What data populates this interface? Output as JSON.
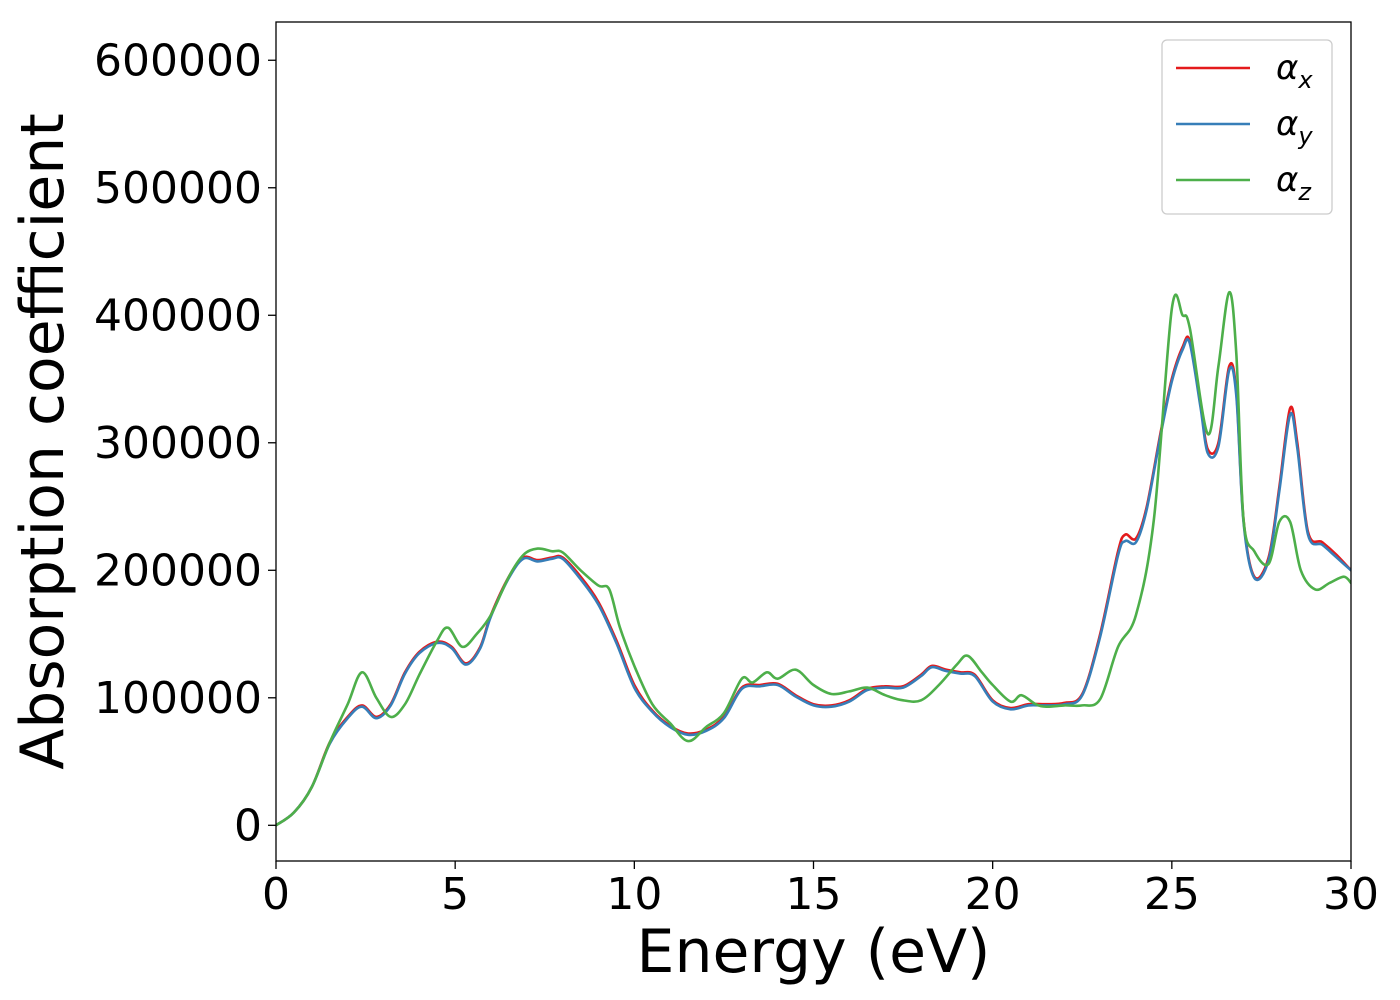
{
  "chart_data": {
    "type": "line",
    "title": "",
    "xlabel": "Energy (eV)",
    "ylabel": "Absorption coefficient",
    "xlim": [
      0,
      30
    ],
    "ylim": [
      -28000,
      630000
    ],
    "xticks": [
      0,
      5,
      10,
      15,
      20,
      25,
      30
    ],
    "xtick_labels": [
      "0",
      "5",
      "10",
      "15",
      "20",
      "25",
      "30"
    ],
    "yticks": [
      0,
      100000,
      200000,
      300000,
      400000,
      500000,
      600000
    ],
    "ytick_labels": [
      "0",
      "100000",
      "200000",
      "300000",
      "400000",
      "500000",
      "600000"
    ],
    "grid": false,
    "legend_position": "top-right",
    "series": [
      {
        "name": "α_x",
        "name_base": "α",
        "name_sub": "x",
        "color": "#e41a1c",
        "x": [
          0,
          0.5,
          1,
          1.5,
          2,
          2.4,
          2.8,
          3.2,
          3.6,
          4,
          4.5,
          4.9,
          5.3,
          5.7,
          6,
          6.5,
          6.9,
          7.3,
          7.7,
          8,
          8.5,
          9,
          9.5,
          10,
          10.5,
          11,
          11.5,
          12,
          12.5,
          13,
          13.5,
          14,
          14.5,
          15,
          15.5,
          16,
          16.5,
          17,
          17.5,
          18,
          18.3,
          18.7,
          19.1,
          19.5,
          20,
          20.5,
          21,
          21.5,
          22,
          22.5,
          23,
          23.5,
          23.7,
          24,
          24.3,
          24.7,
          25,
          25.3,
          25.5,
          25.8,
          26,
          26.3,
          26.6,
          26.8,
          27,
          27.3,
          27.7,
          28,
          28.3,
          28.5,
          28.8,
          29.2,
          29.6,
          30
        ],
        "y": [
          0,
          10000,
          30000,
          65000,
          85000,
          94000,
          85000,
          95000,
          120000,
          136000,
          144000,
          140000,
          127000,
          140000,
          165000,
          195000,
          210000,
          208000,
          210000,
          210000,
          195000,
          175000,
          145000,
          110000,
          90000,
          78000,
          72000,
          75000,
          85000,
          108000,
          110000,
          111000,
          102000,
          95000,
          94000,
          98000,
          107000,
          109000,
          109000,
          118000,
          125000,
          122000,
          120000,
          118000,
          98000,
          92000,
          95000,
          95000,
          96000,
          103000,
          150000,
          215000,
          228000,
          225000,
          250000,
          310000,
          350000,
          375000,
          380000,
          330000,
          295000,
          300000,
          360000,
          340000,
          240000,
          195000,
          210000,
          265000,
          327000,
          300000,
          230000,
          222000,
          212000,
          200000
        ]
      },
      {
        "name": "α_y",
        "name_base": "α",
        "name_sub": "y",
        "color": "#377eb8",
        "x": [
          0,
          0.5,
          1,
          1.5,
          2,
          2.4,
          2.8,
          3.2,
          3.6,
          4,
          4.5,
          4.9,
          5.3,
          5.7,
          6,
          6.5,
          6.9,
          7.3,
          7.7,
          8,
          8.5,
          9,
          9.5,
          10,
          10.5,
          11,
          11.5,
          12,
          12.5,
          13,
          13.5,
          14,
          14.5,
          15,
          15.5,
          16,
          16.5,
          17,
          17.5,
          18,
          18.3,
          18.7,
          19.1,
          19.5,
          20,
          20.5,
          21,
          21.5,
          22,
          22.5,
          23,
          23.5,
          23.7,
          24,
          24.3,
          24.7,
          25,
          25.3,
          25.5,
          25.8,
          26,
          26.3,
          26.6,
          26.8,
          27,
          27.3,
          27.7,
          28,
          28.3,
          28.5,
          28.8,
          29.2,
          29.6,
          30
        ],
        "y": [
          0,
          10000,
          30000,
          64000,
          84000,
          93000,
          84000,
          94000,
          119000,
          135000,
          143000,
          139000,
          126000,
          139000,
          164000,
          194000,
          209000,
          207000,
          209000,
          209000,
          193000,
          173000,
          143000,
          108000,
          89000,
          77000,
          71000,
          74000,
          84000,
          107000,
          109000,
          110000,
          101000,
          94000,
          93000,
          97000,
          106000,
          108000,
          108000,
          117000,
          124000,
          121000,
          119000,
          117000,
          97000,
          91000,
          94000,
          94000,
          95000,
          102000,
          148000,
          212000,
          223000,
          222000,
          248000,
          308000,
          348000,
          373000,
          378000,
          328000,
          292000,
          297000,
          357000,
          337000,
          238000,
          194000,
          208000,
          262000,
          322000,
          296000,
          228000,
          220000,
          210000,
          200000
        ]
      },
      {
        "name": "α_z",
        "name_base": "α",
        "name_sub": "z",
        "color": "#4daf4a",
        "x": [
          0,
          0.5,
          1,
          1.5,
          2,
          2.4,
          2.8,
          3.2,
          3.6,
          4,
          4.5,
          4.8,
          5.2,
          5.6,
          6,
          6.5,
          6.9,
          7.3,
          7.7,
          8,
          8.5,
          9,
          9.3,
          9.6,
          10,
          10.5,
          11,
          11.5,
          12,
          12.5,
          13,
          13.3,
          13.7,
          14,
          14.5,
          15,
          15.5,
          16,
          16.5,
          17,
          17.5,
          18,
          18.5,
          19,
          19.3,
          19.7,
          20,
          20.5,
          20.8,
          21.2,
          21.5,
          22,
          22.5,
          23,
          23.5,
          24,
          24.5,
          25,
          25.3,
          25.5,
          26,
          26.3,
          26.6,
          26.8,
          27,
          27.3,
          27.7,
          28,
          28.3,
          28.6,
          29,
          29.4,
          29.8,
          30
        ],
        "y": [
          0,
          10000,
          30000,
          65000,
          95000,
          120000,
          100000,
          85000,
          95000,
          118000,
          145000,
          155000,
          140000,
          150000,
          165000,
          195000,
          212000,
          217000,
          215000,
          214000,
          200000,
          188000,
          185000,
          155000,
          125000,
          95000,
          80000,
          66000,
          77000,
          88000,
          115000,
          112000,
          120000,
          115000,
          122000,
          110000,
          103000,
          105000,
          108000,
          102000,
          98000,
          98000,
          110000,
          126000,
          133000,
          120000,
          110000,
          97000,
          102000,
          95000,
          93000,
          94000,
          94000,
          99000,
          140000,
          165000,
          240000,
          405000,
          400000,
          390000,
          307000,
          360000,
          418000,
          370000,
          240000,
          215000,
          205000,
          238000,
          238000,
          200000,
          185000,
          190000,
          195000,
          190000
        ]
      }
    ]
  }
}
